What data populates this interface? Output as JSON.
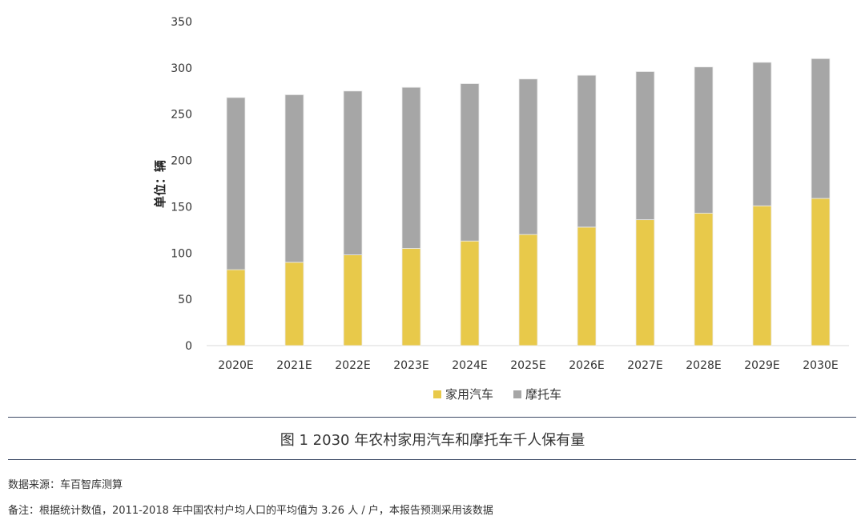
{
  "chart_data": {
    "type": "bar",
    "stacked": true,
    "categories": [
      "2020E",
      "2021E",
      "2022E",
      "2023E",
      "2024E",
      "2025E",
      "2026E",
      "2027E",
      "2028E",
      "2029E",
      "2030E"
    ],
    "series": [
      {
        "name": "家用汽车",
        "color": "#e8c94a",
        "values": [
          82,
          90,
          98,
          105,
          113,
          120,
          128,
          136,
          143,
          151,
          159
        ]
      },
      {
        "name": "摩托车",
        "color": "#a6a6a6",
        "values": [
          186,
          181,
          177,
          174,
          170,
          168,
          164,
          160,
          158,
          155,
          151
        ]
      }
    ],
    "ylabel": "单位：辆",
    "ylim": [
      0,
      350
    ],
    "yticks": [
      0,
      50,
      100,
      150,
      200,
      250,
      300,
      350
    ],
    "grid": false,
    "legend": "bottom"
  },
  "caption": "图 1 2030 年农村家用汽车和摩托车千人保有量",
  "source": "数据来源：车百智库测算",
  "note": "备注：根据统计数值，2011-2018 年中国农村户均人口的平均值为 3.26 人 / 户，本报告预测采用该数据"
}
